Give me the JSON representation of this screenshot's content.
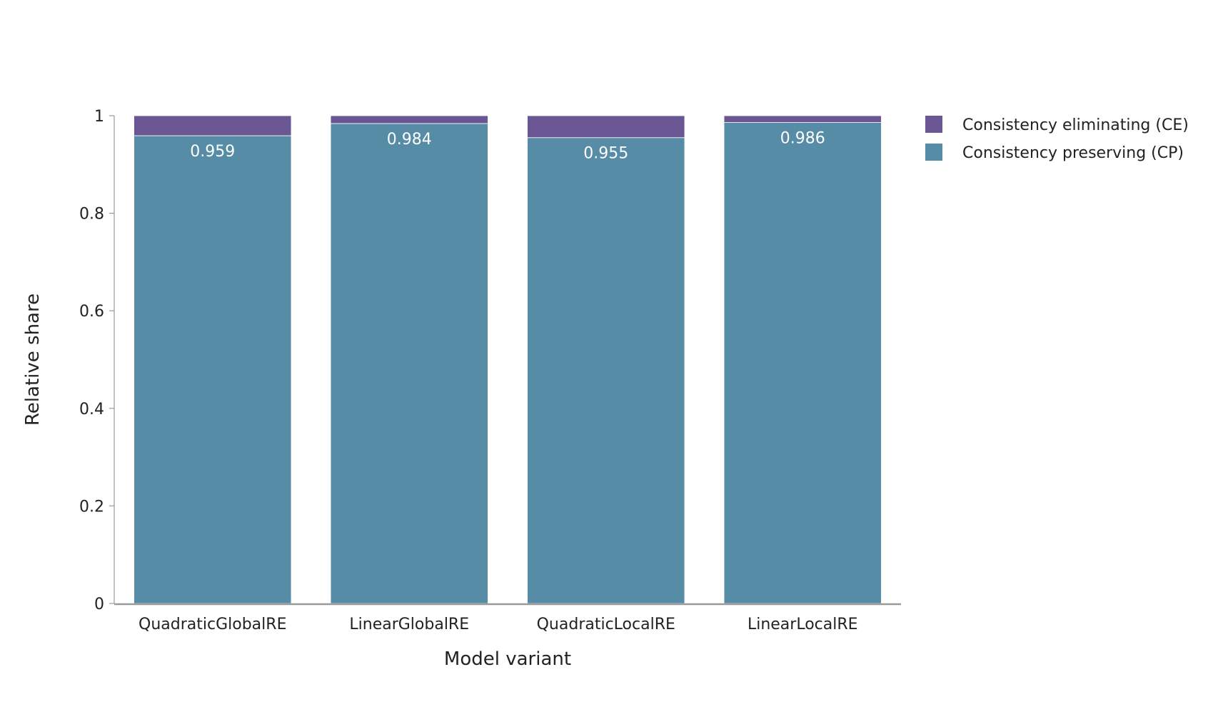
{
  "chart_data": {
    "type": "bar",
    "stacked": true,
    "title": "",
    "xlabel": "Model variant",
    "ylabel": "Relative share",
    "ylim": [
      0,
      1
    ],
    "yticks": [
      0,
      0.2,
      0.4,
      0.6,
      0.8,
      1
    ],
    "ytick_labels": [
      "0",
      "0.2",
      "0.4",
      "0.6",
      "0.8",
      "1"
    ],
    "grid": false,
    "legend_position": "top-right",
    "categories": [
      "QuadraticGlobalRE",
      "LinearGlobalRE",
      "QuadraticLocalRE",
      "LinearLocalRE"
    ],
    "series": [
      {
        "name": "Consistency preserving (CP)",
        "color": "#568ca5",
        "values": [
          0.959,
          0.984,
          0.955,
          0.986
        ],
        "labels": [
          "0.959",
          "0.984",
          "0.955",
          "0.986"
        ]
      },
      {
        "name": "Consistency eliminating (CE)",
        "color": "#6a5693",
        "values": [
          0.041,
          0.016,
          0.045,
          0.014
        ]
      }
    ],
    "legend_order": [
      "Consistency eliminating (CE)",
      "Consistency preserving (CP)"
    ]
  }
}
